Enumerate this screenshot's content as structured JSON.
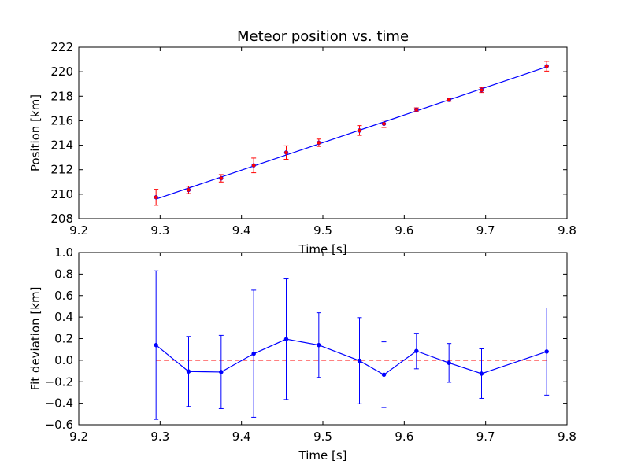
{
  "chart_data": [
    {
      "type": "scatter",
      "title": "Meteor position vs. time",
      "xlabel": "Time [s]",
      "ylabel": "Position [km]",
      "xlim": [
        9.2,
        9.8
      ],
      "ylim": [
        208,
        222
      ],
      "xticks": [
        "9.2",
        "9.3",
        "9.4",
        "9.5",
        "9.6",
        "9.7",
        "9.8"
      ],
      "yticks": [
        "208",
        "210",
        "212",
        "214",
        "216",
        "218",
        "220",
        "222"
      ],
      "grid": false,
      "colors": {
        "points": "#ff0000",
        "errorbars": "#ff0000",
        "fit": "#0000ff",
        "frame": "#000000"
      },
      "series": [
        {
          "type": "errorbar",
          "x": [
            9.295,
            9.335,
            9.375,
            9.415,
            9.455,
            9.495,
            9.545,
            9.575,
            9.615,
            9.655,
            9.695,
            9.775
          ],
          "y": [
            209.75,
            210.35,
            211.3,
            212.35,
            213.4,
            214.2,
            215.2,
            215.75,
            216.9,
            217.7,
            218.5,
            220.45
          ],
          "yerr": [
            0.65,
            0.3,
            0.3,
            0.6,
            0.55,
            0.3,
            0.4,
            0.3,
            0.15,
            0.12,
            0.2,
            0.4
          ]
        },
        {
          "type": "line",
          "x": [
            9.295,
            9.775
          ],
          "y": [
            209.6,
            220.4
          ]
        }
      ]
    },
    {
      "type": "line",
      "title": "",
      "xlabel": "Time [s]",
      "ylabel": "Fit deviation [km]",
      "xlim": [
        9.2,
        9.8
      ],
      "ylim": [
        -0.6,
        1.0
      ],
      "xticks": [
        "9.2",
        "9.3",
        "9.4",
        "9.5",
        "9.6",
        "9.7",
        "9.8"
      ],
      "yticks": [
        "−0.6",
        "−0.4",
        "−0.2",
        "0.0",
        "0.2",
        "0.4",
        "0.6",
        "0.8",
        "1.0"
      ],
      "grid": false,
      "colors": {
        "line": "#0000ff",
        "errorbars": "#0000ff",
        "zero_line": "#ff0000",
        "frame": "#000000"
      },
      "series": [
        {
          "type": "errorbar",
          "x": [
            9.295,
            9.335,
            9.375,
            9.415,
            9.455,
            9.495,
            9.545,
            9.575,
            9.615,
            9.655,
            9.695,
            9.775
          ],
          "y": [
            0.14,
            -0.105,
            -0.11,
            0.06,
            0.195,
            0.14,
            -0.005,
            -0.135,
            0.085,
            -0.025,
            -0.125,
            0.08
          ],
          "yerr": [
            0.69,
            0.325,
            0.34,
            0.59,
            0.56,
            0.3,
            0.4,
            0.305,
            0.165,
            0.18,
            0.23,
            0.405
          ]
        },
        {
          "type": "dashed-line",
          "x": [
            9.295,
            9.775
          ],
          "y": [
            0,
            0
          ]
        }
      ]
    }
  ]
}
